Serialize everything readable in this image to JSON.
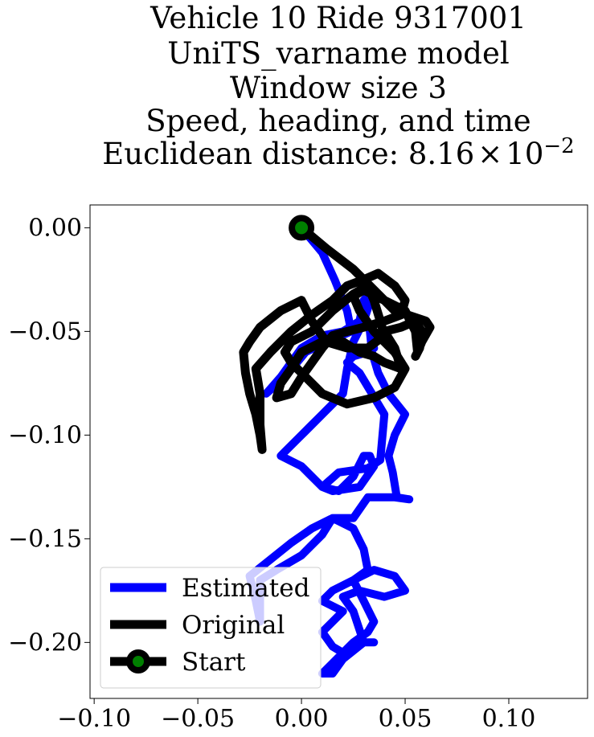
{
  "chart_data": {
    "type": "line",
    "title_lines": [
      "Vehicle 10 Ride 9317001",
      "UniTS_varname model",
      "Window size 3",
      "Speed, heading, and time"
    ],
    "title_distance_prefix": "Euclidean distance: ",
    "title_distance_mantissa": "8.16",
    "title_distance_times": "×",
    "title_distance_base": "10",
    "title_distance_exponent": "−2",
    "xlim": [
      -0.102,
      0.138
    ],
    "ylim": [
      -0.227,
      0.011
    ],
    "x_ticks": [
      {
        "value": -0.1,
        "label": "−0.10"
      },
      {
        "value": -0.05,
        "label": "−0.05"
      },
      {
        "value": 0.0,
        "label": "0.00"
      },
      {
        "value": 0.05,
        "label": "0.05"
      },
      {
        "value": 0.1,
        "label": "0.10"
      }
    ],
    "y_ticks": [
      {
        "value": 0.0,
        "label": "0.00"
      },
      {
        "value": -0.05,
        "label": "−0.05"
      },
      {
        "value": -0.1,
        "label": "−0.10"
      },
      {
        "value": -0.15,
        "label": "−0.15"
      },
      {
        "value": -0.2,
        "label": "−0.20"
      }
    ],
    "grid": false,
    "legend_position": "lower-left",
    "series": [
      {
        "name": "Estimated",
        "color": "#0000ff",
        "points": [
          [
            0.0,
            0.0
          ],
          [
            0.01,
            -0.012
          ],
          [
            0.016,
            -0.025
          ],
          [
            0.022,
            -0.04
          ],
          [
            0.024,
            -0.05
          ],
          [
            0.012,
            -0.055
          ],
          [
            0.002,
            -0.06
          ],
          [
            -0.008,
            -0.072
          ],
          [
            -0.017,
            -0.08
          ],
          [
            -0.01,
            -0.072
          ],
          [
            0.0,
            -0.058
          ],
          [
            0.01,
            -0.052
          ],
          [
            0.02,
            -0.05
          ],
          [
            0.028,
            -0.045
          ],
          [
            0.03,
            -0.035
          ],
          [
            0.035,
            -0.03
          ],
          [
            0.03,
            -0.045
          ],
          [
            0.025,
            -0.055
          ],
          [
            0.022,
            -0.068
          ],
          [
            0.02,
            -0.08
          ],
          [
            0.01,
            -0.09
          ],
          [
            0.0,
            -0.1
          ],
          [
            -0.008,
            -0.108
          ],
          [
            -0.01,
            -0.11
          ],
          [
            0.0,
            -0.115
          ],
          [
            0.01,
            -0.125
          ],
          [
            0.018,
            -0.127
          ],
          [
            0.025,
            -0.12
          ],
          [
            0.03,
            -0.11
          ],
          [
            0.033,
            -0.11
          ],
          [
            0.035,
            -0.115
          ],
          [
            0.028,
            -0.125
          ],
          [
            0.015,
            -0.127
          ],
          [
            0.01,
            -0.125
          ],
          [
            0.018,
            -0.118
          ],
          [
            0.032,
            -0.116
          ],
          [
            0.038,
            -0.112
          ],
          [
            0.04,
            -0.09
          ],
          [
            0.028,
            -0.07
          ],
          [
            0.022,
            -0.065
          ],
          [
            0.025,
            -0.062
          ],
          [
            0.032,
            -0.06
          ],
          [
            0.035,
            -0.058
          ],
          [
            0.033,
            -0.05
          ],
          [
            0.034,
            -0.06
          ],
          [
            0.037,
            -0.07
          ],
          [
            0.042,
            -0.08
          ],
          [
            0.05,
            -0.09
          ],
          [
            0.045,
            -0.1
          ],
          [
            0.042,
            -0.11
          ],
          [
            0.044,
            -0.118
          ],
          [
            0.046,
            -0.13
          ],
          [
            0.052,
            -0.131
          ],
          [
            0.045,
            -0.13
          ],
          [
            0.032,
            -0.13
          ],
          [
            0.025,
            -0.14
          ],
          [
            0.02,
            -0.14
          ],
          [
            0.015,
            -0.14
          ],
          [
            0.005,
            -0.145
          ],
          [
            -0.005,
            -0.152
          ],
          [
            -0.015,
            -0.16
          ],
          [
            -0.025,
            -0.168
          ],
          [
            -0.022,
            -0.18
          ],
          [
            -0.02,
            -0.19
          ],
          [
            -0.02,
            -0.17
          ],
          [
            -0.012,
            -0.165
          ],
          [
            0.0,
            -0.158
          ],
          [
            0.01,
            -0.148
          ],
          [
            0.015,
            -0.14
          ],
          [
            0.025,
            -0.145
          ],
          [
            0.03,
            -0.155
          ],
          [
            0.032,
            -0.165
          ],
          [
            0.025,
            -0.17
          ],
          [
            0.015,
            -0.175
          ],
          [
            0.01,
            -0.18
          ],
          [
            0.02,
            -0.185
          ],
          [
            0.015,
            -0.19
          ],
          [
            0.01,
            -0.195
          ],
          [
            0.015,
            -0.202
          ],
          [
            0.02,
            -0.205
          ],
          [
            0.025,
            -0.2
          ],
          [
            0.032,
            -0.195
          ],
          [
            0.035,
            -0.19
          ],
          [
            0.03,
            -0.18
          ],
          [
            0.025,
            -0.17
          ],
          [
            0.035,
            -0.165
          ],
          [
            0.045,
            -0.168
          ],
          [
            0.05,
            -0.175
          ],
          [
            0.04,
            -0.178
          ],
          [
            0.028,
            -0.175
          ],
          [
            0.02,
            -0.178
          ],
          [
            0.025,
            -0.185
          ],
          [
            0.03,
            -0.2
          ],
          [
            0.02,
            -0.208
          ],
          [
            0.015,
            -0.215
          ],
          [
            0.01,
            -0.215
          ],
          [
            0.015,
            -0.21
          ],
          [
            0.02,
            -0.205
          ],
          [
            0.025,
            -0.2
          ],
          [
            0.035,
            -0.2
          ]
        ]
      },
      {
        "name": "Original",
        "color": "#000000",
        "points": [
          [
            0.0,
            0.0
          ],
          [
            0.012,
            -0.01
          ],
          [
            0.025,
            -0.02
          ],
          [
            0.035,
            -0.03
          ],
          [
            0.045,
            -0.04
          ],
          [
            0.06,
            -0.045
          ],
          [
            0.062,
            -0.048
          ],
          [
            0.058,
            -0.055
          ],
          [
            0.056,
            -0.06
          ],
          [
            0.055,
            -0.05
          ],
          [
            0.05,
            -0.04
          ],
          [
            0.04,
            -0.035
          ],
          [
            0.03,
            -0.03
          ],
          [
            0.025,
            -0.033
          ],
          [
            0.028,
            -0.04
          ],
          [
            0.035,
            -0.05
          ],
          [
            0.045,
            -0.06
          ],
          [
            0.05,
            -0.068
          ],
          [
            0.045,
            -0.077
          ],
          [
            0.035,
            -0.082
          ],
          [
            0.022,
            -0.085
          ],
          [
            0.01,
            -0.08
          ],
          [
            0.005,
            -0.075
          ],
          [
            0.0,
            -0.07
          ],
          [
            -0.005,
            -0.065
          ],
          [
            -0.008,
            -0.06
          ],
          [
            -0.005,
            -0.055
          ],
          [
            0.005,
            -0.05
          ],
          [
            0.015,
            -0.04
          ],
          [
            0.025,
            -0.032
          ],
          [
            0.032,
            -0.028
          ],
          [
            0.035,
            -0.035
          ],
          [
            0.038,
            -0.045
          ],
          [
            0.04,
            -0.052
          ],
          [
            0.032,
            -0.058
          ],
          [
            0.022,
            -0.058
          ],
          [
            0.012,
            -0.055
          ],
          [
            0.005,
            -0.045
          ],
          [
            0.0,
            -0.035
          ],
          [
            -0.01,
            -0.04
          ],
          [
            -0.02,
            -0.048
          ],
          [
            -0.025,
            -0.055
          ],
          [
            -0.028,
            -0.06
          ],
          [
            -0.027,
            -0.07
          ],
          [
            -0.025,
            -0.08
          ],
          [
            -0.022,
            -0.09
          ],
          [
            -0.02,
            -0.1
          ],
          [
            -0.019,
            -0.107
          ],
          [
            -0.02,
            -0.095
          ],
          [
            -0.02,
            -0.08
          ],
          [
            -0.022,
            -0.068
          ],
          [
            -0.015,
            -0.06
          ],
          [
            -0.005,
            -0.05
          ],
          [
            0.005,
            -0.042
          ],
          [
            0.015,
            -0.035
          ],
          [
            0.022,
            -0.028
          ],
          [
            0.03,
            -0.025
          ],
          [
            0.037,
            -0.022
          ],
          [
            0.045,
            -0.028
          ],
          [
            0.05,
            -0.035
          ],
          [
            0.048,
            -0.042
          ],
          [
            0.04,
            -0.045
          ],
          [
            0.03,
            -0.048
          ],
          [
            0.022,
            -0.05
          ],
          [
            0.015,
            -0.052
          ],
          [
            0.01,
            -0.058
          ],
          [
            0.005,
            -0.065
          ],
          [
            0.0,
            -0.072
          ],
          [
            -0.005,
            -0.08
          ],
          [
            -0.012,
            -0.082
          ],
          [
            -0.01,
            -0.075
          ],
          [
            -0.005,
            -0.068
          ],
          [
            0.0,
            -0.06
          ],
          [
            0.01,
            -0.055
          ],
          [
            0.02,
            -0.055
          ],
          [
            0.028,
            -0.06
          ],
          [
            0.035,
            -0.062
          ],
          [
            0.04,
            -0.065
          ],
          [
            0.048,
            -0.068
          ],
          [
            0.045,
            -0.058
          ],
          [
            0.04,
            -0.05
          ],
          [
            0.048,
            -0.048
          ],
          [
            0.055,
            -0.045
          ],
          [
            0.058,
            -0.05
          ],
          [
            0.057,
            -0.058
          ],
          [
            0.055,
            -0.062
          ]
        ]
      }
    ],
    "start_point": {
      "name": "Start",
      "x": 0.0,
      "y": 0.0,
      "marker_color": "#008000",
      "edge_color": "#000000"
    },
    "legend": {
      "entries": [
        {
          "label": "Estimated",
          "color": "#0000ff",
          "style": "line"
        },
        {
          "label": "Original",
          "color": "#000000",
          "style": "line"
        },
        {
          "label": "Start",
          "color": "#000000",
          "style": "marker",
          "marker_color": "#008000"
        }
      ]
    }
  }
}
